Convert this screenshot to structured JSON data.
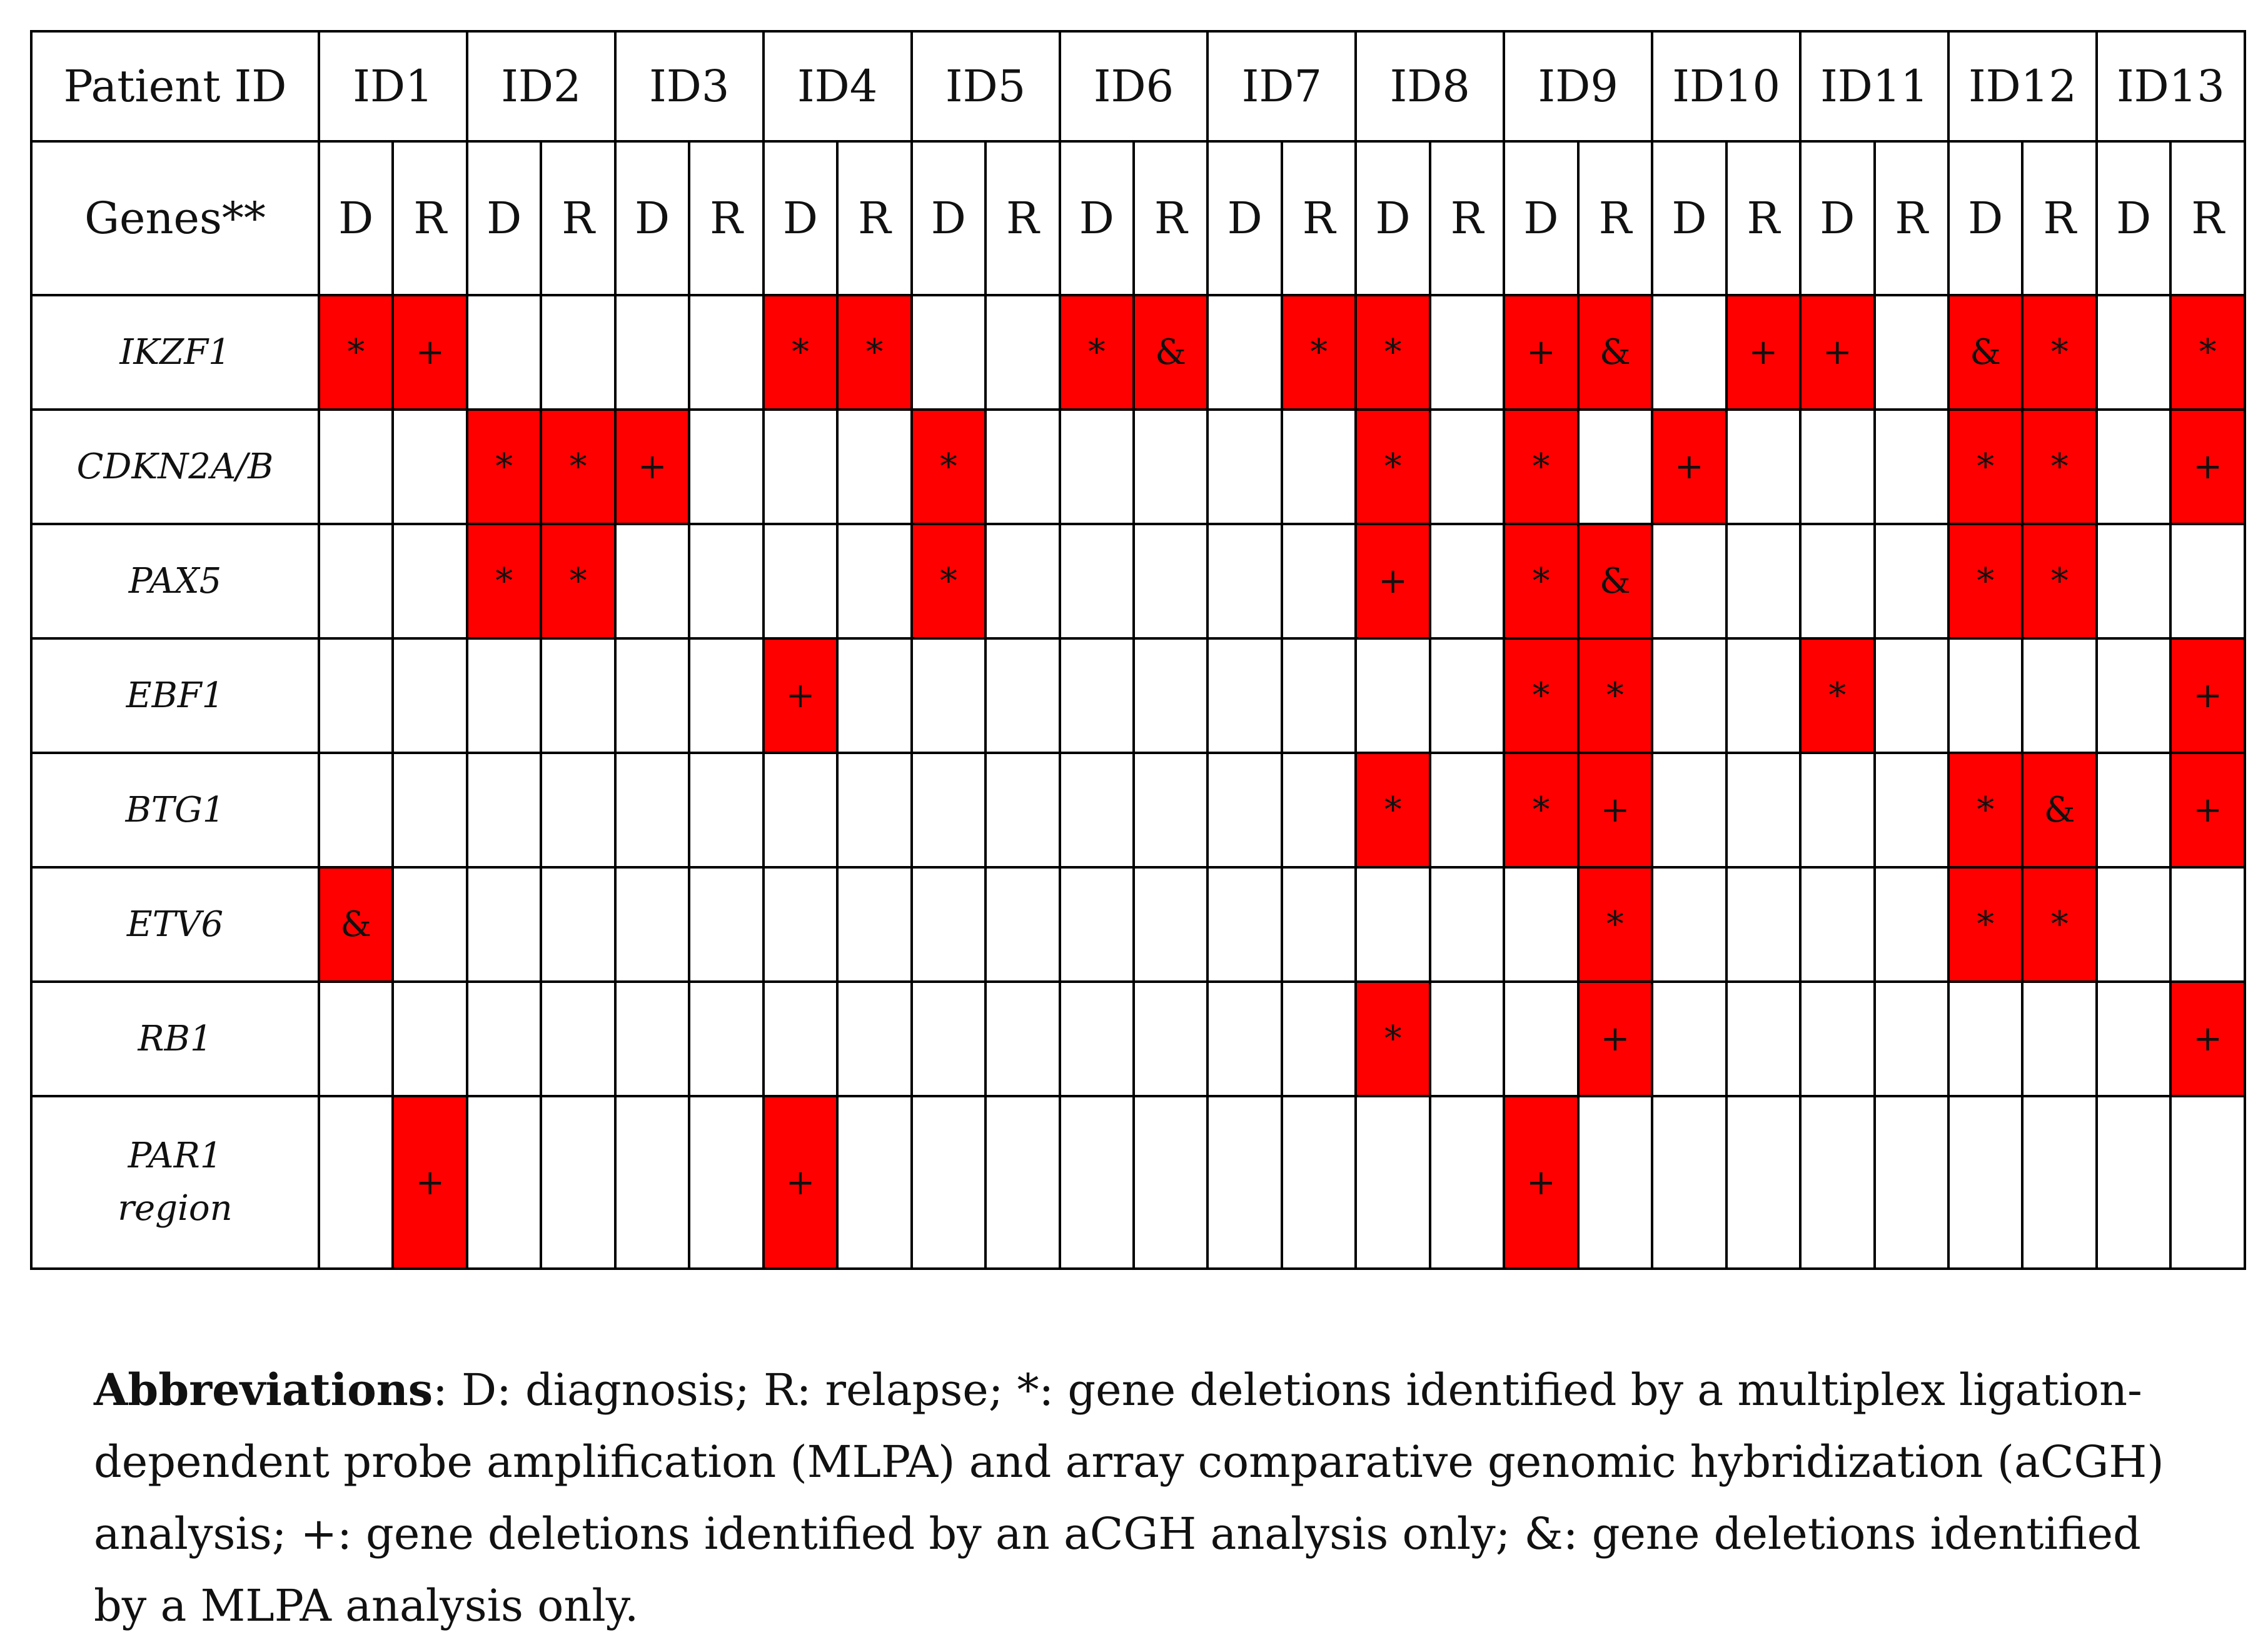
{
  "header": {
    "patient_label": "Patient ID",
    "genes_label": "Genes**",
    "patients": [
      "ID1",
      "ID2",
      "ID3",
      "ID4",
      "ID5",
      "ID6",
      "ID7",
      "ID8",
      "ID9",
      "ID10",
      "ID11",
      "ID12",
      "ID13"
    ],
    "sub": [
      "D",
      "R"
    ]
  },
  "colors": {
    "deletion": "#ff0000"
  },
  "rows": [
    {
      "gene": "IKZF1",
      "cells": [
        "*",
        "+",
        "",
        "",
        "",
        "",
        "*",
        "*",
        "",
        "",
        "*",
        "&",
        "",
        "*",
        "*",
        "",
        "+",
        "&",
        "",
        "+",
        "+",
        "",
        "&",
        "*",
        "",
        "*"
      ]
    },
    {
      "gene": "CDKN2A/B",
      "cells": [
        "",
        "",
        "*",
        "*",
        "+",
        "",
        "",
        "",
        "*",
        "",
        "",
        "",
        "",
        "",
        "*",
        "",
        "*",
        "",
        "+",
        "",
        "",
        "",
        "*",
        "*",
        "",
        "+"
      ]
    },
    {
      "gene": "PAX5",
      "cells": [
        "",
        "",
        "*",
        "*",
        "",
        "",
        "",
        "",
        "*",
        "",
        "",
        "",
        "",
        "",
        "+",
        "",
        "*",
        "&",
        "",
        "",
        "",
        "",
        "*",
        "*",
        "",
        ""
      ]
    },
    {
      "gene": "EBF1",
      "cells": [
        "",
        "",
        "",
        "",
        "",
        "",
        "+",
        "",
        "",
        "",
        "",
        "",
        "",
        "",
        "",
        "",
        "*",
        "*",
        "",
        "",
        "*",
        "",
        "",
        "",
        "",
        "+"
      ]
    },
    {
      "gene": "BTG1",
      "cells": [
        "",
        "",
        "",
        "",
        "",
        "",
        "",
        "",
        "",
        "",
        "",
        "",
        "",
        "",
        "*",
        "",
        "*",
        "+",
        "",
        "",
        "",
        "",
        "*",
        "&",
        "",
        "+"
      ]
    },
    {
      "gene": "ETV6",
      "cells": [
        "&",
        "",
        "",
        "",
        "",
        "",
        "",
        "",
        "",
        "",
        "",
        "",
        "",
        "",
        "",
        "",
        "",
        "*",
        "",
        "",
        "",
        "",
        "*",
        "*",
        "",
        ""
      ]
    },
    {
      "gene": "RB1",
      "cells": [
        "",
        "",
        "",
        "",
        "",
        "",
        "",
        "",
        "",
        "",
        "",
        "",
        "",
        "",
        "*",
        "",
        "",
        "+",
        "",
        "",
        "",
        "",
        "",
        "",
        "",
        "+"
      ]
    },
    {
      "gene": "PAR1 region",
      "cells": [
        "",
        "+",
        "",
        "",
        "",
        "",
        "+",
        "",
        "",
        "",
        "",
        "",
        "",
        "",
        "",
        "",
        "+",
        "",
        "",
        "",
        "",
        "",
        "",
        "",
        "",
        ""
      ]
    }
  ],
  "footnote": {
    "label": "Abbreviations",
    "text": ": D: diagnosis; R: relapse; *: gene deletions identified by a multiplex ligation-dependent probe amplification (MLPA) and array comparative genomic hybridization (aCGH) analysis; +: gene deletions identified by an aCGH analysis only; &: gene deletions identified by a MLPA analysis only."
  }
}
